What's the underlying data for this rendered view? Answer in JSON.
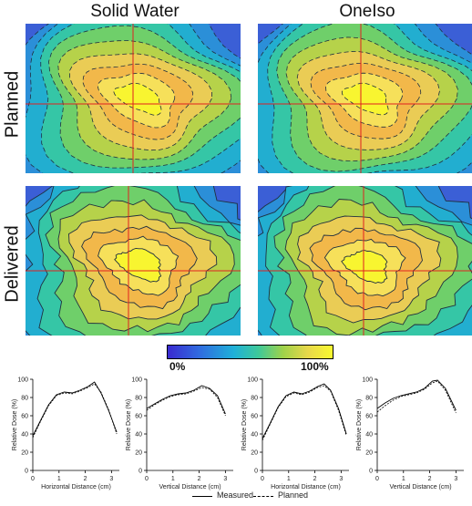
{
  "columns": {
    "left": "Solid Water",
    "right": "OneIso"
  },
  "rows": {
    "top": "Planned",
    "bottom": "Delivered"
  },
  "colorbar": {
    "min_label": "0%",
    "max_label": "100%",
    "colors": [
      "#3a2ad0",
      "#2f6ee0",
      "#1fb0d8",
      "#3ec99a",
      "#9fd24a",
      "#e8d84a",
      "#f8f830"
    ]
  },
  "profiles": [
    {
      "ylabel": "Relative Dose (%)",
      "xlabel": "Horizontal Distance (cm)",
      "yticks": [
        "0",
        "20",
        "40",
        "60",
        "80",
        "100"
      ],
      "xticks": [
        "0",
        "1",
        "2",
        "3"
      ],
      "measured": [
        [
          0,
          38
        ],
        [
          0.3,
          55
        ],
        [
          0.6,
          72
        ],
        [
          0.9,
          83
        ],
        [
          1.2,
          86
        ],
        [
          1.5,
          85
        ],
        [
          1.8,
          88
        ],
        [
          2.1,
          92
        ],
        [
          2.35,
          97
        ],
        [
          2.6,
          85
        ],
        [
          2.9,
          65
        ],
        [
          3.2,
          42
        ]
      ],
      "planned": [
        [
          0,
          36
        ],
        [
          0.3,
          54
        ],
        [
          0.6,
          71
        ],
        [
          0.9,
          82
        ],
        [
          1.2,
          85
        ],
        [
          1.5,
          84
        ],
        [
          1.8,
          87
        ],
        [
          2.1,
          91
        ],
        [
          2.35,
          95
        ],
        [
          2.6,
          86
        ],
        [
          2.9,
          66
        ],
        [
          3.2,
          40
        ]
      ]
    },
    {
      "ylabel": "Relative Dose (%)",
      "xlabel": "Vertical Distance (cm)",
      "yticks": [
        "0",
        "20",
        "40",
        "60",
        "80",
        "100"
      ],
      "xticks": [
        "0",
        "1",
        "2",
        "3"
      ],
      "measured": [
        [
          0,
          68
        ],
        [
          0.3,
          73
        ],
        [
          0.6,
          78
        ],
        [
          0.9,
          82
        ],
        [
          1.2,
          84
        ],
        [
          1.5,
          85
        ],
        [
          1.8,
          88
        ],
        [
          2.1,
          93
        ],
        [
          2.4,
          90
        ],
        [
          2.7,
          82
        ],
        [
          3.0,
          62
        ]
      ],
      "planned": [
        [
          0,
          66
        ],
        [
          0.3,
          72
        ],
        [
          0.6,
          77
        ],
        [
          0.9,
          81
        ],
        [
          1.2,
          83
        ],
        [
          1.5,
          84
        ],
        [
          1.8,
          87
        ],
        [
          2.1,
          91
        ],
        [
          2.4,
          89
        ],
        [
          2.7,
          80
        ],
        [
          3.0,
          60
        ]
      ]
    },
    {
      "ylabel": "Relative Dose (%)",
      "xlabel": "Horizontal Distance (cm)",
      "yticks": [
        "0",
        "20",
        "40",
        "60",
        "80",
        "100"
      ],
      "xticks": [
        "0",
        "1",
        "2",
        "3"
      ],
      "measured": [
        [
          0,
          35
        ],
        [
          0.3,
          52
        ],
        [
          0.6,
          70
        ],
        [
          0.9,
          82
        ],
        [
          1.2,
          86
        ],
        [
          1.5,
          84
        ],
        [
          1.8,
          87
        ],
        [
          2.1,
          92
        ],
        [
          2.35,
          95
        ],
        [
          2.6,
          88
        ],
        [
          2.9,
          68
        ],
        [
          3.2,
          40
        ]
      ],
      "planned": [
        [
          0,
          33
        ],
        [
          0.3,
          51
        ],
        [
          0.6,
          69
        ],
        [
          0.9,
          81
        ],
        [
          1.2,
          85
        ],
        [
          1.5,
          83
        ],
        [
          1.8,
          86
        ],
        [
          2.1,
          91
        ],
        [
          2.35,
          93
        ],
        [
          2.6,
          87
        ],
        [
          2.9,
          66
        ],
        [
          3.2,
          38
        ]
      ]
    },
    {
      "ylabel": "Relative Dose (%)",
      "xlabel": "Vertical Distance (cm)",
      "yticks": [
        "0",
        "20",
        "40",
        "60",
        "80",
        "100"
      ],
      "xticks": [
        "0",
        "1",
        "2",
        "3"
      ],
      "measured": [
        [
          0,
          68
        ],
        [
          0.3,
          74
        ],
        [
          0.6,
          79
        ],
        [
          0.9,
          82
        ],
        [
          1.2,
          84
        ],
        [
          1.5,
          86
        ],
        [
          1.8,
          90
        ],
        [
          2.1,
          98
        ],
        [
          2.3,
          99
        ],
        [
          2.6,
          90
        ],
        [
          3.0,
          66
        ]
      ],
      "planned": [
        [
          0,
          64
        ],
        [
          0.3,
          71
        ],
        [
          0.6,
          77
        ],
        [
          0.9,
          81
        ],
        [
          1.2,
          83
        ],
        [
          1.5,
          85
        ],
        [
          1.8,
          89
        ],
        [
          2.1,
          96
        ],
        [
          2.3,
          98
        ],
        [
          2.6,
          88
        ],
        [
          3.0,
          63
        ]
      ]
    }
  ],
  "legend": {
    "measured": "Measured",
    "planned": "Planned"
  }
}
